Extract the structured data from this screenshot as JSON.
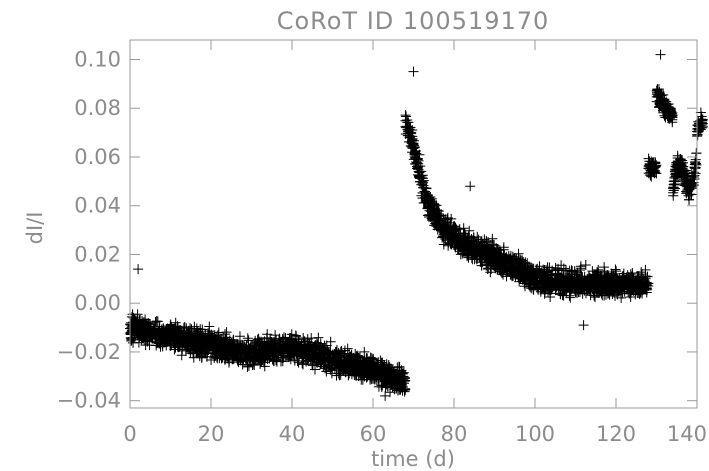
{
  "chart_data": {
    "type": "scatter",
    "title": "CoRoT ID 100519170",
    "xlabel": "time (d)",
    "ylabel": "dI/I",
    "xlim": [
      0,
      140
    ],
    "ylim": [
      -0.043,
      0.108
    ],
    "x_ticks": [
      0,
      20,
      40,
      60,
      80,
      100,
      120,
      140
    ],
    "x_tick_labels": [
      "0",
      "20",
      "40",
      "60",
      "80",
      "100",
      "120",
      "140"
    ],
    "y_ticks": [
      -0.04,
      -0.02,
      0.0,
      0.02,
      0.04,
      0.06,
      0.08,
      0.1
    ],
    "y_tick_labels": [
      "−0.04",
      "−0.02",
      "0.00",
      "0.02",
      "0.04",
      "0.06",
      "0.08",
      "0.10"
    ],
    "grid": false,
    "marker": "plus",
    "series": [
      {
        "segments": [
          {
            "x": [
              0,
              10,
              20,
              30,
              40,
              50,
              60,
              68
            ],
            "y": [
              -0.01,
              -0.014,
              -0.017,
              -0.021,
              -0.018,
              -0.023,
              -0.027,
              -0.033
            ],
            "scatter": 0.01
          },
          {
            "x": [
              68,
              69,
              70,
              71,
              72,
              73,
              75,
              78,
              82,
              88,
              95,
              100,
              110,
              120,
              128
            ],
            "y": [
              0.075,
              0.07,
              0.064,
              0.057,
              0.05,
              0.044,
              0.036,
              0.03,
              0.025,
              0.02,
              0.015,
              0.01,
              0.008,
              0.008,
              0.008
            ],
            "scatter": 0.01
          },
          {
            "x": [
              128,
              129,
              130
            ],
            "y": [
              0.055,
              0.055,
              0.055
            ],
            "scatter": 0.007
          },
          {
            "x": [
              130,
              131,
              132,
              133,
              134
            ],
            "y": [
              0.085,
              0.083,
              0.081,
              0.079,
              0.077
            ],
            "scatter": 0.007
          },
          {
            "x": [
              134,
              135,
              136,
              137,
              138,
              139,
              140
            ],
            "y": [
              0.045,
              0.055,
              0.058,
              0.052,
              0.045,
              0.05,
              0.06
            ],
            "scatter": 0.009
          },
          {
            "x": [
              140,
              141,
              142
            ],
            "y": [
              0.07,
              0.075,
              0.075
            ],
            "scatter": 0.006
          }
        ],
        "outliers": [
          {
            "x": 2,
            "y": 0.014
          },
          {
            "x": 70,
            "y": 0.095
          },
          {
            "x": 84,
            "y": 0.048
          },
          {
            "x": 112,
            "y": -0.009
          },
          {
            "x": 131,
            "y": 0.102
          },
          {
            "x": 63,
            "y": -0.038
          }
        ]
      }
    ]
  }
}
